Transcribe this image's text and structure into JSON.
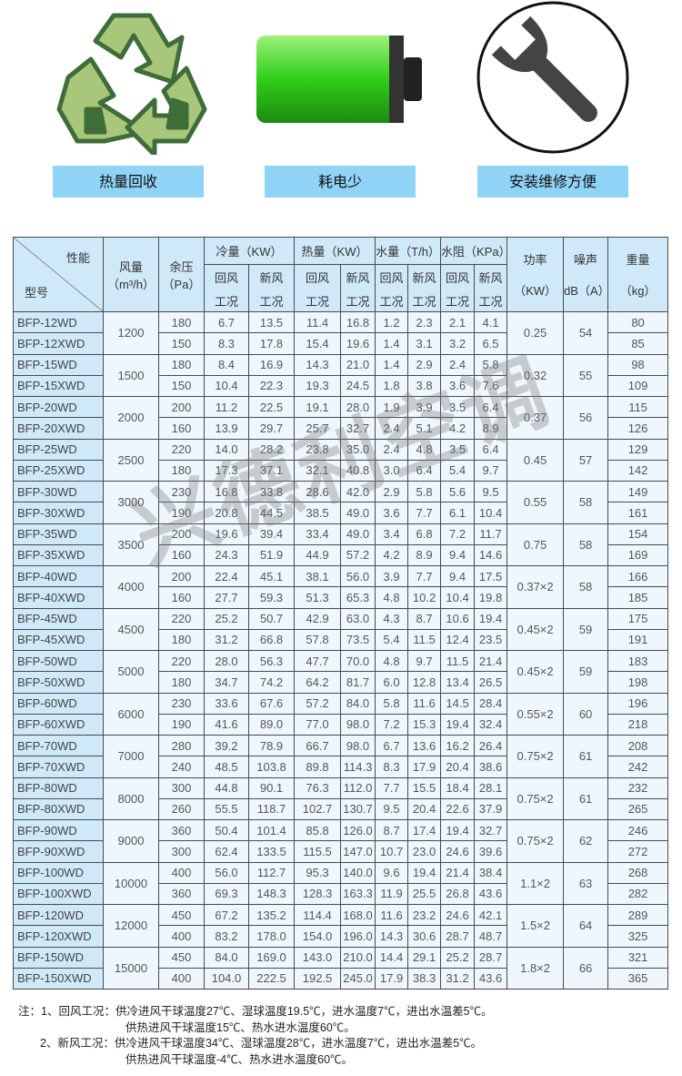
{
  "features": [
    {
      "label": "热量回收",
      "icon": "recycle-icon"
    },
    {
      "label": "耗电少",
      "icon": "battery-icon"
    },
    {
      "label": "安装维修方便",
      "icon": "wrench-icon"
    }
  ],
  "colors": {
    "label_bg": "#8fd3f6",
    "header_bg": "#cfe9f8",
    "cell_bg": "#eef7fd",
    "recycle_light": "#a9c77a",
    "recycle_dark": "#3f6d3a",
    "battery": "#3ccf2a"
  },
  "table": {
    "header": {
      "performance": "性能",
      "model": "型号",
      "airflow": "风量",
      "airflow_unit": "（m³/h）",
      "pressure": "余压",
      "pressure_unit": "（Pa）",
      "cooling": "冷量（KW）",
      "heating": "热量（KW）",
      "water": "水量（T/h）",
      "resistance": "水阻（KPa）",
      "return_air_1": "回风",
      "return_air_2": "工况",
      "fresh_air_1": "新风",
      "fresh_air_2": "工况",
      "power": "功率",
      "power_unit": "（KW）",
      "noise": "噪声",
      "noise_unit": "dB（A）",
      "weight": "重量",
      "weight_unit": "（kg）"
    },
    "groups": [
      {
        "airflow": "1200",
        "power": "0.25",
        "noise": "54",
        "rows": [
          [
            "BFP-12WD",
            "180",
            "6.7",
            "13.5",
            "11.4",
            "16.8",
            "1.2",
            "2.3",
            "2.1",
            "4.1",
            "80"
          ],
          [
            "BFP-12XWD",
            "150",
            "8.3",
            "17.8",
            "15.4",
            "19.6",
            "1.4",
            "3.1",
            "3.2",
            "6.5",
            "85"
          ]
        ]
      },
      {
        "airflow": "1500",
        "power": "0.32",
        "noise": "55",
        "rows": [
          [
            "BFP-15WD",
            "180",
            "8.4",
            "16.9",
            "14.3",
            "21.0",
            "1.4",
            "2.9",
            "2.4",
            "5.8",
            "98"
          ],
          [
            "BFP-15XWD",
            "150",
            "10.4",
            "22.3",
            "19.3",
            "24.5",
            "1.8",
            "3.8",
            "3.6",
            "7.6",
            "109"
          ]
        ]
      },
      {
        "airflow": "2000",
        "power": "0.37",
        "noise": "56",
        "rows": [
          [
            "BFP-20WD",
            "200",
            "11.2",
            "22.5",
            "19.1",
            "28.0",
            "1.9",
            "3.9",
            "3.5",
            "6.4",
            "115"
          ],
          [
            "BFP-20XWD",
            "160",
            "13.9",
            "29.7",
            "25.7",
            "32.7",
            "2.4",
            "5.1",
            "4.2",
            "8.9",
            "126"
          ]
        ]
      },
      {
        "airflow": "2500",
        "power": "0.45",
        "noise": "57",
        "rows": [
          [
            "BFP-25WD",
            "220",
            "14.0",
            "28.2",
            "23.8",
            "35.0",
            "2.4",
            "4.8",
            "3.5",
            "6.4",
            "129"
          ],
          [
            "BFP-25XWD",
            "180",
            "17.3",
            "37.1",
            "32.1",
            "40.8",
            "3.0",
            "6.4",
            "5.4",
            "9.7",
            "142"
          ]
        ]
      },
      {
        "airflow": "3000",
        "power": "0.55",
        "noise": "58",
        "rows": [
          [
            "BFP-30WD",
            "230",
            "16.8",
            "33.8",
            "28.6",
            "42.0",
            "2.9",
            "5.8",
            "5.6",
            "9.5",
            "149"
          ],
          [
            "BFP-30XWD",
            "190",
            "20.8",
            "44.5",
            "38.5",
            "49.0",
            "3.6",
            "7.7",
            "6.1",
            "10.4",
            "161"
          ]
        ]
      },
      {
        "airflow": "3500",
        "power": "0.75",
        "noise": "58",
        "rows": [
          [
            "BFP-35WD",
            "200",
            "19.6",
            "39.4",
            "33.4",
            "49.0",
            "3.4",
            "6.8",
            "7.2",
            "11.7",
            "154"
          ],
          [
            "BFP-35XWD",
            "160",
            "24.3",
            "51.9",
            "44.9",
            "57.2",
            "4.2",
            "8.9",
            "9.4",
            "14.6",
            "169"
          ]
        ]
      },
      {
        "airflow": "4000",
        "power": "0.37×2",
        "noise": "58",
        "rows": [
          [
            "BFP-40WD",
            "200",
            "22.4",
            "45.1",
            "38.1",
            "56.0",
            "3.9",
            "7.7",
            "9.4",
            "17.5",
            "166"
          ],
          [
            "BFP-40XWD",
            "160",
            "27.7",
            "59.3",
            "51.3",
            "65.3",
            "4.8",
            "10.2",
            "10.4",
            "19.8",
            "185"
          ]
        ]
      },
      {
        "airflow": "4500",
        "power": "0.45×2",
        "noise": "59",
        "rows": [
          [
            "BFP-45WD",
            "220",
            "25.2",
            "50.7",
            "42.9",
            "63.0",
            "4.3",
            "8.7",
            "10.6",
            "19.4",
            "175"
          ],
          [
            "BFP-45XWD",
            "180",
            "31.2",
            "66.8",
            "57.8",
            "73.5",
            "5.4",
            "11.5",
            "12.4",
            "23.5",
            "191"
          ]
        ]
      },
      {
        "airflow": "5000",
        "power": "0.45×2",
        "noise": "59",
        "rows": [
          [
            "BFP-50WD",
            "220",
            "28.0",
            "56.3",
            "47.7",
            "70.0",
            "4.8",
            "9.7",
            "11.5",
            "21.4",
            "183"
          ],
          [
            "BFP-50XWD",
            "180",
            "34.7",
            "74.2",
            "64.2",
            "81.7",
            "6.0",
            "12.8",
            "13.4",
            "26.5",
            "198"
          ]
        ]
      },
      {
        "airflow": "6000",
        "power": "0.55×2",
        "noise": "60",
        "rows": [
          [
            "BFP-60WD",
            "230",
            "33.6",
            "67.6",
            "57.2",
            "84.0",
            "5.8",
            "11.6",
            "14.5",
            "28.4",
            "196"
          ],
          [
            "BFP-60XWD",
            "190",
            "41.6",
            "89.0",
            "77.0",
            "98.0",
            "7.2",
            "15.3",
            "19.4",
            "32.4",
            "218"
          ]
        ]
      },
      {
        "airflow": "7000",
        "power": "0.75×2",
        "noise": "61",
        "rows": [
          [
            "BFP-70WD",
            "280",
            "39.2",
            "78.9",
            "66.7",
            "98.0",
            "6.7",
            "13.6",
            "16.2",
            "26.4",
            "208"
          ],
          [
            "BFP-70XWD",
            "240",
            "48.5",
            "103.8",
            "89.8",
            "114.3",
            "8.3",
            "17.9",
            "20.4",
            "38.6",
            "242"
          ]
        ]
      },
      {
        "airflow": "8000",
        "power": "0.75×2",
        "noise": "61",
        "rows": [
          [
            "BFP-80WD",
            "300",
            "44.8",
            "90.1",
            "76.3",
            "112.0",
            "7.7",
            "15.5",
            "18.4",
            "28.1",
            "232"
          ],
          [
            "BFP-80XWD",
            "260",
            "55.5",
            "118.7",
            "102.7",
            "130.7",
            "9.5",
            "20.4",
            "22.6",
            "37.9",
            "265"
          ]
        ]
      },
      {
        "airflow": "9000",
        "power": "0.75×2",
        "noise": "62",
        "rows": [
          [
            "BFP-90WD",
            "360",
            "50.4",
            "101.4",
            "85.8",
            "126.0",
            "8.7",
            "17.4",
            "19.4",
            "32.7",
            "246"
          ],
          [
            "BFP-90XWD",
            "300",
            "62.4",
            "133.5",
            "115.5",
            "147.0",
            "10.7",
            "23.0",
            "24.6",
            "39.6",
            "272"
          ]
        ]
      },
      {
        "airflow": "10000",
        "power": "1.1×2",
        "noise": "63",
        "rows": [
          [
            "BFP-100WD",
            "400",
            "56.0",
            "112.7",
            "95.3",
            "140.0",
            "9.6",
            "19.4",
            "21.4",
            "38.4",
            "268"
          ],
          [
            "BFP-100XWD",
            "360",
            "69.3",
            "148.3",
            "128.3",
            "163.3",
            "11.9",
            "25.5",
            "26.8",
            "43.6",
            "282"
          ]
        ]
      },
      {
        "airflow": "12000",
        "power": "1.5×2",
        "noise": "64",
        "rows": [
          [
            "BFP-120WD",
            "450",
            "67.2",
            "135.2",
            "114.4",
            "168.0",
            "11.6",
            "23.2",
            "24.6",
            "42.1",
            "289"
          ],
          [
            "BFP-120XWD",
            "400",
            "83.2",
            "178.0",
            "154.0",
            "196.0",
            "14.3",
            "30.6",
            "28.7",
            "48.7",
            "325"
          ]
        ]
      },
      {
        "airflow": "15000",
        "power": "1.8×2",
        "noise": "66",
        "rows": [
          [
            "BFP-150WD",
            "450",
            "84.0",
            "169.0",
            "143.0",
            "210.0",
            "14.4",
            "29.1",
            "25.2",
            "28.7",
            "321"
          ],
          [
            "BFP-150XWD",
            "400",
            "104.0",
            "222.5",
            "192.5",
            "245.0",
            "17.9",
            "38.3",
            "31.2",
            "43.6",
            "365"
          ]
        ]
      }
    ]
  },
  "watermark": "兴德利空调",
  "notes": [
    "注：1、回风工况：供冷进风干球温度27℃、湿球温度19.5℃，进水温度7℃，进出水温差5℃。",
    "供热进风干球温度15℃、热水进水温度60℃。",
    "2、新风工况：供冷进风干球温度34℃、湿球温度28℃，进水温度7℃，进出水温差5℃。",
    "供热进风干球温度-4℃、热水进水温度60℃。"
  ]
}
